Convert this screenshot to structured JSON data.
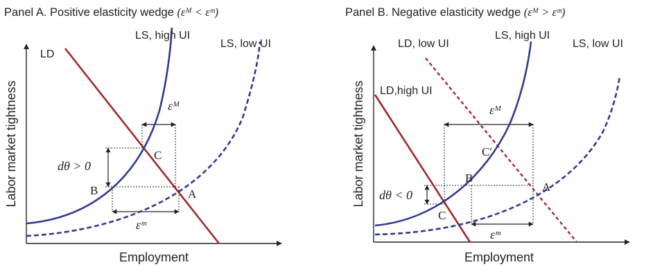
{
  "panels": [
    {
      "title_text": "Panel A. Positive elasticity wedge ",
      "title_math": "(εᴹ < εᵐ)",
      "xlabel": "Employment",
      "ylabel": "Labor market tightness",
      "curves": {
        "ld": "LD",
        "ls_high": "LS, high UI",
        "ls_low": "LS, low UI"
      },
      "points": {
        "a": "A",
        "b": "B",
        "c": "C"
      },
      "annotations": {
        "eps_macro": "εᴹ",
        "eps_micro": "εᵐ",
        "dtheta": "dθ > 0"
      }
    },
    {
      "title_text": "Panel B. Negative elasticity wedge ",
      "title_math": "(εᴹ > εᵐ)",
      "xlabel": "Employment",
      "ylabel": "Labor market tightness",
      "curves": {
        "ld_low": "LD, low UI",
        "ld_high": "LD,high UI",
        "ls_high": "LS, high UI",
        "ls_low": "LS, low UI"
      },
      "points": {
        "a": "A",
        "b": "B",
        "c": "C",
        "c_prime": "C′"
      },
      "annotations": {
        "eps_macro": "εᴹ",
        "eps_micro": "εᵐ",
        "dtheta": "dθ < 0"
      }
    }
  ],
  "colors": {
    "labor_demand": "#a3262b",
    "labor_supply": "#2f3a8f",
    "axis": "#222222",
    "guide": "#222222"
  }
}
